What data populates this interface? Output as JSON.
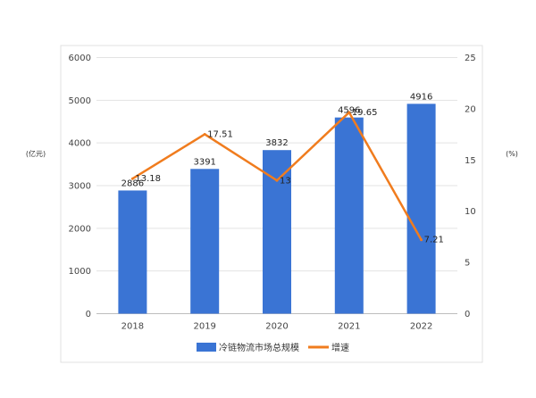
{
  "chart_data": {
    "type": "bar",
    "categories": [
      "2018",
      "2019",
      "2020",
      "2021",
      "2022"
    ],
    "series": [
      {
        "name": "冷链物流市场总规模",
        "type": "bar",
        "axis": "left",
        "values": [
          2886,
          3391,
          3832,
          4596,
          4916
        ],
        "labels": [
          "2886",
          "3391",
          "3832",
          "4596",
          "4916"
        ],
        "color": "#3a74d4"
      },
      {
        "name": "增速",
        "type": "line",
        "axis": "right",
        "values": [
          13.18,
          17.51,
          13,
          19.65,
          7.21
        ],
        "labels": [
          "13.18",
          "17.51",
          "13",
          "19.65",
          "7.21"
        ],
        "color": "#f07c1e"
      }
    ],
    "ylabel_left": "(亿元)",
    "ylabel_right": "(%)",
    "ylim_left": [
      0,
      6000
    ],
    "yticks_left": [
      "0",
      "1000",
      "2000",
      "3000",
      "4000",
      "5000",
      "6000"
    ],
    "ylim_right": [
      0,
      25
    ],
    "yticks_right": [
      "0",
      "5",
      "10",
      "15",
      "20",
      "25"
    ],
    "grid": true,
    "legend_position": "bottom"
  }
}
